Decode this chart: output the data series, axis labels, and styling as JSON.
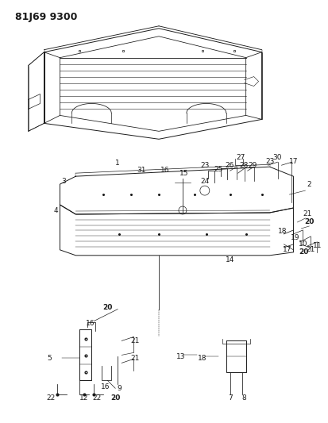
{
  "title": "81J69 9300",
  "bg_color": "#ffffff",
  "line_color": "#1a1a1a",
  "title_fontsize": 9,
  "label_fontsize": 6.5,
  "figsize": [
    4.13,
    5.33
  ],
  "dpi": 100
}
